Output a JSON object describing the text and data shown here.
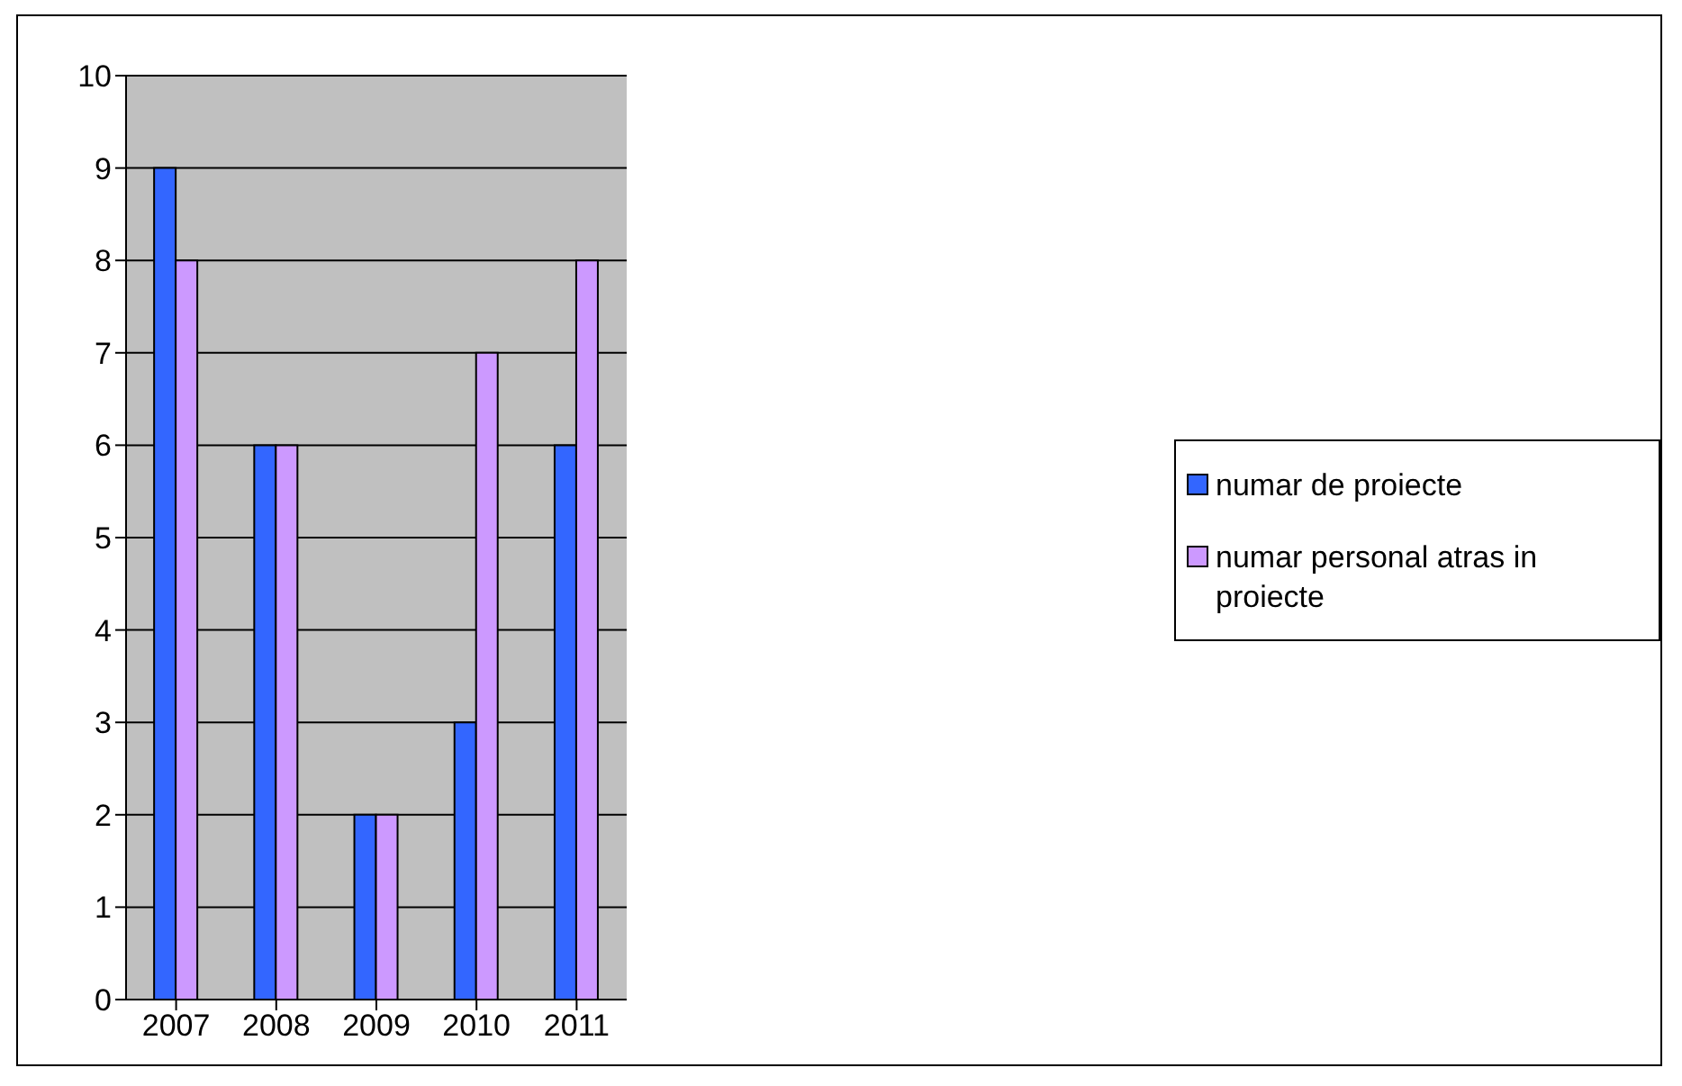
{
  "chart_data": {
    "type": "bar",
    "categories": [
      "2007",
      "2008",
      "2009",
      "2010",
      "2011"
    ],
    "series": [
      {
        "name": "numar de proiecte",
        "color": "#3366ff",
        "values": [
          9,
          6,
          2,
          3,
          6
        ]
      },
      {
        "name": "numar personal atras in proiecte",
        "color": "#cc99ff",
        "values": [
          8,
          6,
          2,
          7,
          8
        ]
      }
    ],
    "ylim": [
      0,
      10
    ],
    "yticks": [
      0,
      1,
      2,
      3,
      4,
      5,
      6,
      7,
      8,
      9,
      10
    ],
    "grid": "y",
    "legend": "right"
  }
}
